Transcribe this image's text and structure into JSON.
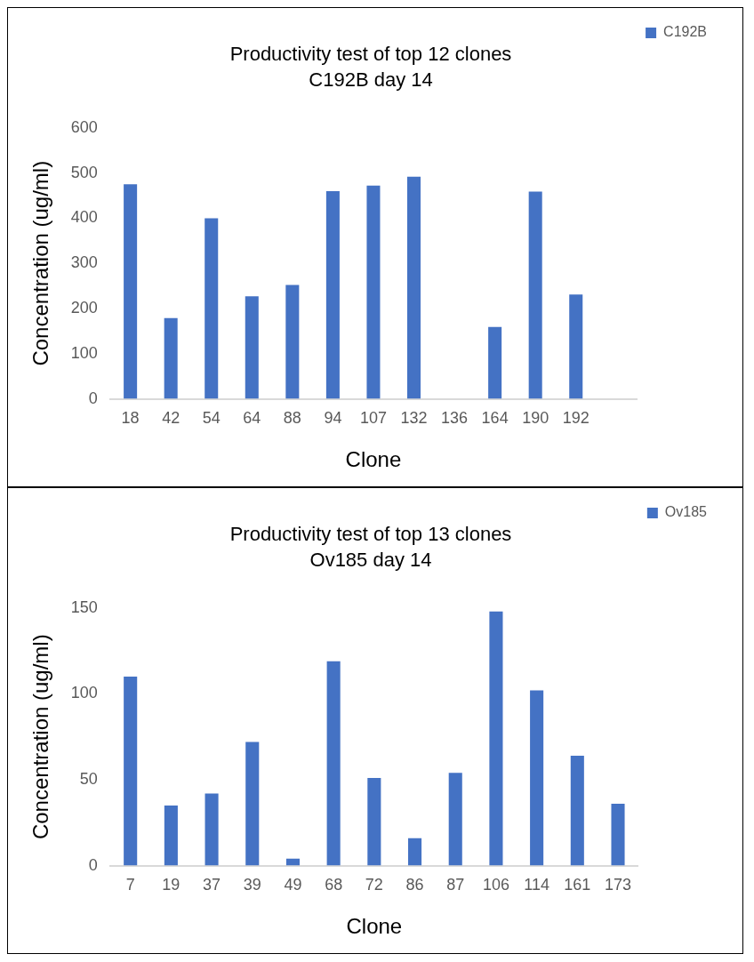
{
  "chart_data": [
    {
      "type": "bar",
      "title": "Productivity test of top 12 clones",
      "subtitle": "C192B day 14",
      "xlabel": "Clone",
      "ylabel": "Concentration (ug/ml)",
      "categories": [
        "18",
        "42",
        "54",
        "64",
        "88",
        "94",
        "107",
        "132",
        "136",
        "164",
        "190",
        "192",
        null
      ],
      "series": [
        {
          "name": "C192B",
          "color": "#4472c4",
          "values": [
            475,
            179,
            400,
            227,
            252,
            460,
            472,
            492,
            null,
            159,
            459,
            231,
            null
          ]
        }
      ],
      "ylim": [
        0,
        600
      ],
      "yticks": [
        0,
        100,
        200,
        300,
        400,
        500,
        600
      ],
      "grid": false,
      "legend": "top right"
    },
    {
      "type": "bar",
      "title": "Productivity test of top 13 clones",
      "subtitle": "Ov185 day 14",
      "xlabel": "Clone",
      "ylabel": "Concentration (ug/ml)",
      "categories": [
        "7",
        "19",
        "37",
        "39",
        "49",
        "68",
        "72",
        "86",
        "87",
        "106",
        "114",
        "161",
        "173"
      ],
      "series": [
        {
          "name": "Ov185",
          "color": "#4472c4",
          "values": [
            110,
            35,
            42,
            72,
            4,
            119,
            51,
            16,
            54,
            148,
            102,
            64,
            36
          ]
        }
      ],
      "ylim": [
        0,
        150
      ],
      "yticks": [
        0,
        50,
        100,
        150
      ],
      "grid": false,
      "legend": "top right"
    }
  ]
}
